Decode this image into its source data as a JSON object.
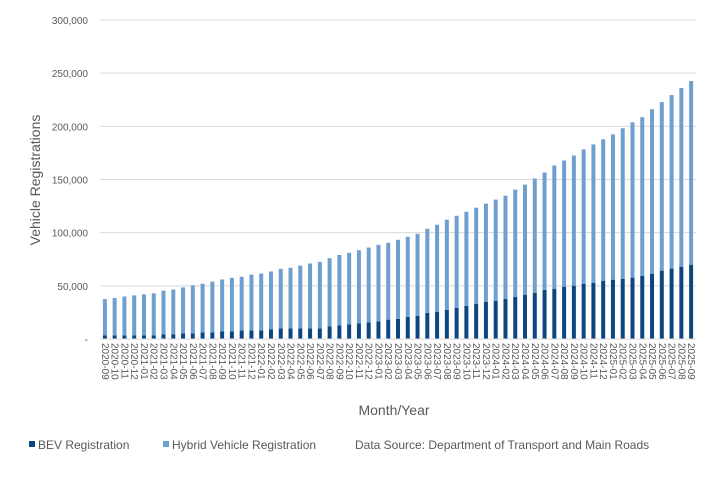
{
  "chart_data": {
    "type": "bar",
    "stacked": true,
    "xlabel": "Month/Year",
    "ylabel": "Vehicle Registrations",
    "ylim": [
      0,
      300000
    ],
    "yticks": [
      "-",
      "50,000",
      "100,000",
      "150,000",
      "200,000",
      "250,000",
      "300,000"
    ],
    "grid": true,
    "legend_position": "bottom",
    "source_note": "Data Source: Department of Transport and Main Roads",
    "categories": [
      "2020-09",
      "2020-10",
      "2020-11",
      "2020-12",
      "2021-01",
      "2021-02",
      "2021-03",
      "2021-04",
      "2021-05",
      "2021-06",
      "2021-07",
      "2021-08",
      "2021-09",
      "2021-10",
      "2021-11",
      "2021-12",
      "2022-01",
      "2022-02",
      "2022-03",
      "2022-04",
      "2022-05",
      "2022-06",
      "2022-07",
      "2022-08",
      "2022-09",
      "2022-10",
      "2022-11",
      "2022-12",
      "2023-01",
      "2023-02",
      "2023-03",
      "2023-04",
      "2023-05",
      "2023-06",
      "2023-07",
      "2023-08",
      "2023-09",
      "2023-10",
      "2023-11",
      "2023-12",
      "2024-01",
      "2024-02",
      "2024-03",
      "2024-04",
      "2024-05",
      "2024-06",
      "2024-07",
      "2024-08",
      "2024-09",
      "2024-10",
      "2024-11",
      "2024-12",
      "2025-01",
      "2025-02",
      "2025-03",
      "2025-04",
      "2025-05",
      "2025-06",
      "2025-07",
      "2025-08",
      "2025-09"
    ],
    "series": [
      {
        "name": "BEV Registration",
        "color": "#0d4580",
        "values": [
          3400,
          3400,
          3400,
          3400,
          3400,
          3400,
          4400,
          4400,
          5300,
          5300,
          6300,
          6300,
          7200,
          7200,
          8100,
          8100,
          8100,
          9100,
          10000,
          10000,
          10000,
          10000,
          10000,
          11900,
          12800,
          13800,
          14700,
          15600,
          16600,
          18200,
          18900,
          20800,
          21700,
          24600,
          25500,
          27400,
          29300,
          31200,
          33100,
          35000,
          35900,
          37800,
          39700,
          41600,
          43500,
          46300,
          47300,
          49200,
          50100,
          52000,
          52900,
          54800,
          55800,
          56700,
          57700,
          59500,
          61400,
          64300,
          66200,
          68000,
          69900
        ]
      },
      {
        "name": "Hybrid Vehicle Registration",
        "color": "#6f9fcf",
        "values": [
          34100,
          35100,
          36600,
          37600,
          38600,
          39600,
          41100,
          42100,
          43200,
          45200,
          45700,
          47700,
          48800,
          50300,
          50400,
          52400,
          53400,
          54400,
          56000,
          57000,
          59000,
          61000,
          62500,
          64100,
          66200,
          67200,
          68800,
          70400,
          71900,
          72300,
          74400,
          75300,
          77200,
          79100,
          81900,
          84800,
          86600,
          88500,
          90400,
          92300,
          95200,
          97000,
          100800,
          103600,
          107400,
          110300,
          115900,
          118700,
          122500,
          126300,
          130100,
          133000,
          136700,
          141500,
          146100,
          149100,
          154700,
          158500,
          163200,
          168000,
          172700
        ]
      }
    ]
  }
}
